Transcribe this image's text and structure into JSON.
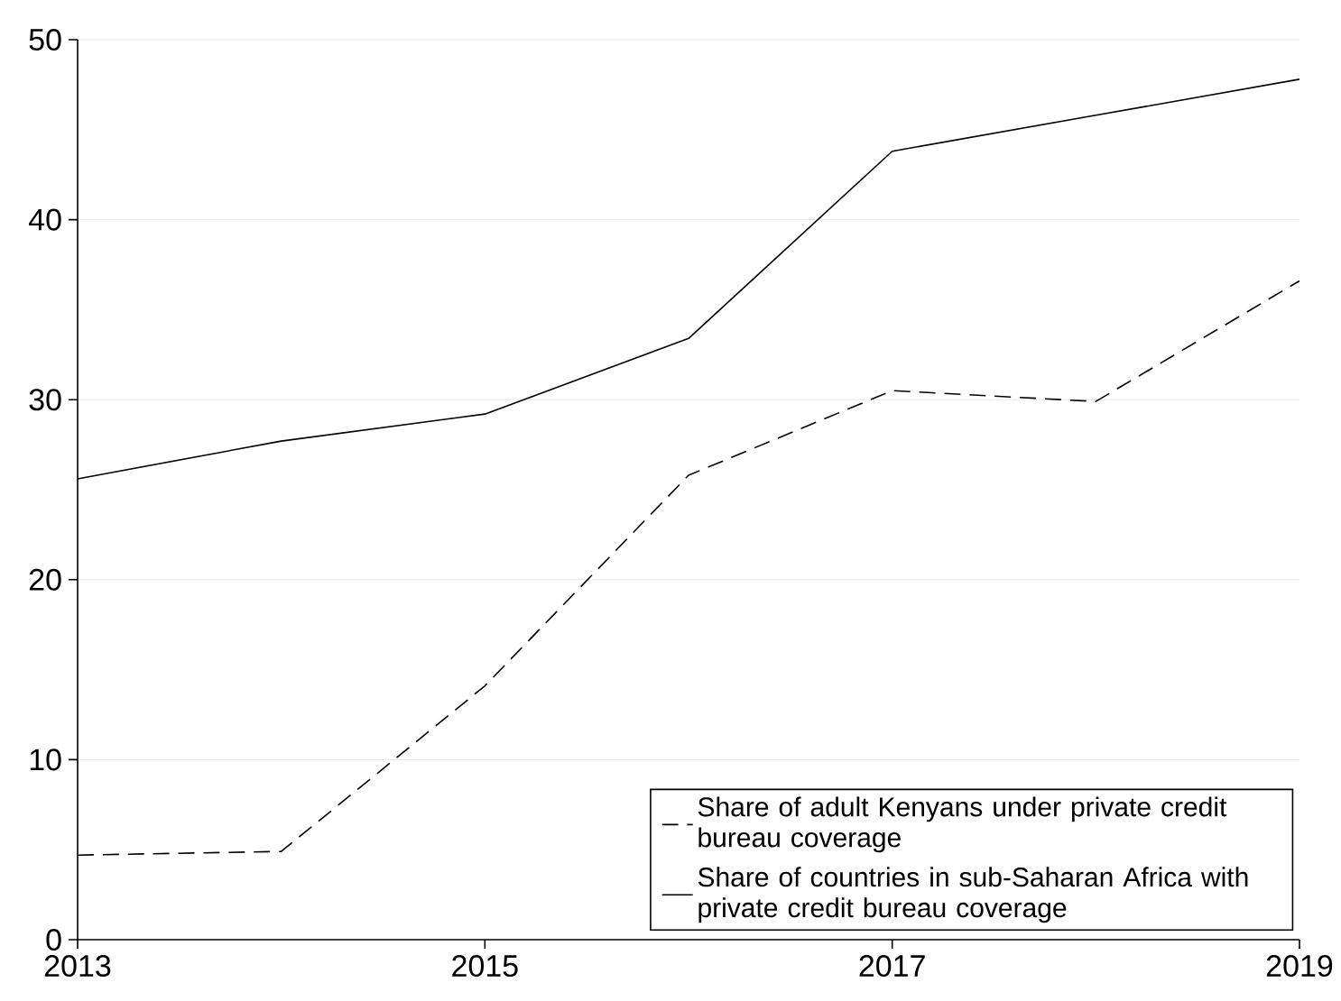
{
  "chart_data": {
    "type": "line",
    "x": [
      2013,
      2014,
      2015,
      2016,
      2017,
      2018,
      2019
    ],
    "series": [
      {
        "name": "Share of adult Kenyans under private credit bureau coverage",
        "color": "#000000",
        "line_style": "dashed",
        "values": [
          4.7,
          4.9,
          14.1,
          25.8,
          30.5,
          29.9,
          36.6
        ]
      },
      {
        "name": "Share of countries in sub-Saharan Africa with private credit bureau coverage",
        "color": "#000000",
        "line_style": "solid",
        "values": [
          25.6,
          27.7,
          29.2,
          33.4,
          43.8,
          45.8,
          47.8
        ]
      }
    ],
    "xlim": [
      2013,
      2019
    ],
    "xticks": [
      2013,
      2015,
      2017,
      2019
    ],
    "ylim": [
      0,
      50
    ],
    "yticks": [
      0,
      10,
      20,
      30,
      40,
      50
    ],
    "grid": "y",
    "legend": "bottom right",
    "marker": "none"
  }
}
